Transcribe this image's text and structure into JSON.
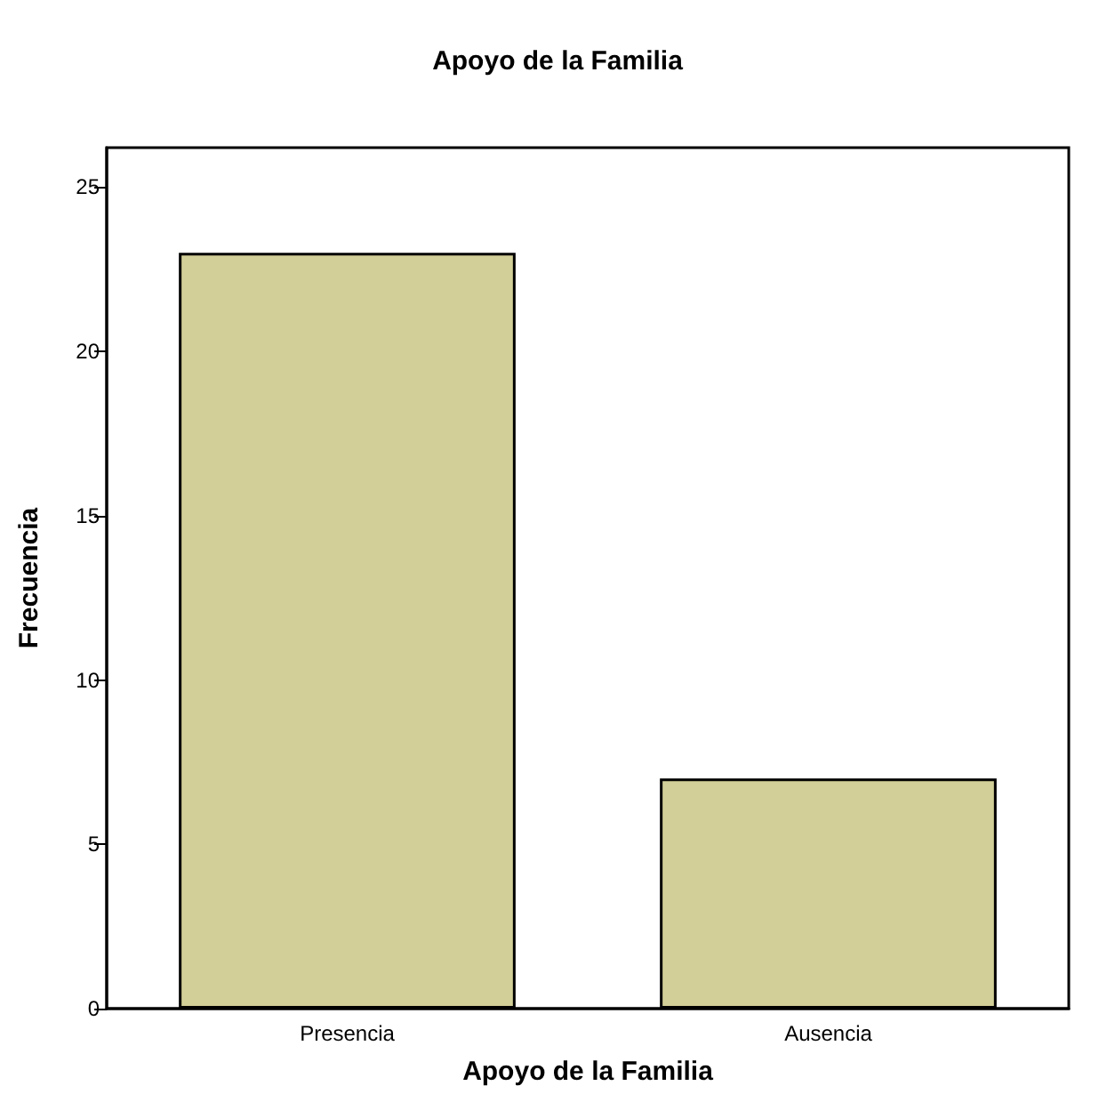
{
  "chart_data": {
    "type": "bar",
    "title": "Apoyo de la Familia",
    "xlabel": "Apoyo de la Familia",
    "ylabel": "Frecuencia",
    "categories": [
      "Presencia",
      "Ausencia"
    ],
    "values": [
      23,
      7
    ],
    "color": "#d3cf98",
    "ylim": [
      0,
      26.2
    ],
    "yticks": [
      0,
      5,
      10,
      15,
      20,
      25
    ],
    "grid": false
  }
}
